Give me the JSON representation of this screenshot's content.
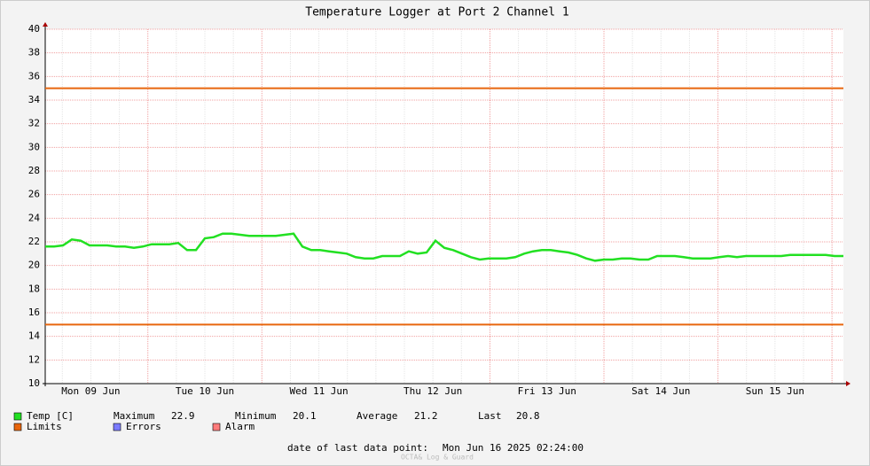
{
  "chart_data": {
    "type": "line",
    "title": "Temperature Logger at Port 2 Channel 1",
    "x_labels": [
      "Mon 09 Jun",
      "Tue 10 Jun",
      "Wed 11 Jun",
      "Thu 12 Jun",
      "Fri 13 Jun",
      "Sat 14 Jun",
      "Sun 15 Jun"
    ],
    "ylim": [
      10,
      40
    ],
    "yticks": [
      10,
      12,
      14,
      16,
      18,
      20,
      22,
      24,
      26,
      28,
      30,
      32,
      34,
      36,
      38,
      40
    ],
    "grid": true,
    "series": [
      {
        "name": "Temp [C]",
        "color": "#22e022",
        "values": [
          21.6,
          21.6,
          21.7,
          22.2,
          22.1,
          21.7,
          21.7,
          21.7,
          21.6,
          21.6,
          21.5,
          21.6,
          21.8,
          21.8,
          21.8,
          21.9,
          21.3,
          21.3,
          22.3,
          22.4,
          22.7,
          22.7,
          22.6,
          22.5,
          22.5,
          22.5,
          22.5,
          22.6,
          22.7,
          21.6,
          21.3,
          21.3,
          21.2,
          21.1,
          21.0,
          20.7,
          20.6,
          20.6,
          20.8,
          20.8,
          20.8,
          21.2,
          21.0,
          21.1,
          22.1,
          21.5,
          21.3,
          21.0,
          20.7,
          20.5,
          20.6,
          20.6,
          20.6,
          20.7,
          21.0,
          21.2,
          21.3,
          21.3,
          21.2,
          21.1,
          20.9,
          20.6,
          20.4,
          20.5,
          20.5,
          20.6,
          20.6,
          20.5,
          20.5,
          20.8,
          20.8,
          20.8,
          20.7,
          20.6,
          20.6,
          20.6,
          20.7,
          20.8,
          20.7,
          20.8,
          20.8,
          20.8,
          20.8,
          20.8,
          20.9,
          20.9,
          20.9,
          20.9,
          20.9,
          20.8,
          20.8
        ]
      }
    ],
    "limits": {
      "name": "Limits",
      "color": "#e8660e",
      "values": [
        35,
        15
      ]
    },
    "errors": {
      "name": "Errors",
      "color": "#7b7bff"
    },
    "alarm": {
      "name": "Alarm",
      "color": "#ff7b7b"
    },
    "stats": [
      {
        "label": "Maximum",
        "value": 22.9
      },
      {
        "label": "Minimum",
        "value": 20.1
      },
      {
        "label": "Average",
        "value": 21.2
      },
      {
        "label": "Last",
        "value": 20.8
      }
    ],
    "footer": {
      "label": "date of last data point:",
      "value": "Mon Jun 16 2025 02:24:00"
    },
    "credit": "OCTA& Log & Guard"
  }
}
